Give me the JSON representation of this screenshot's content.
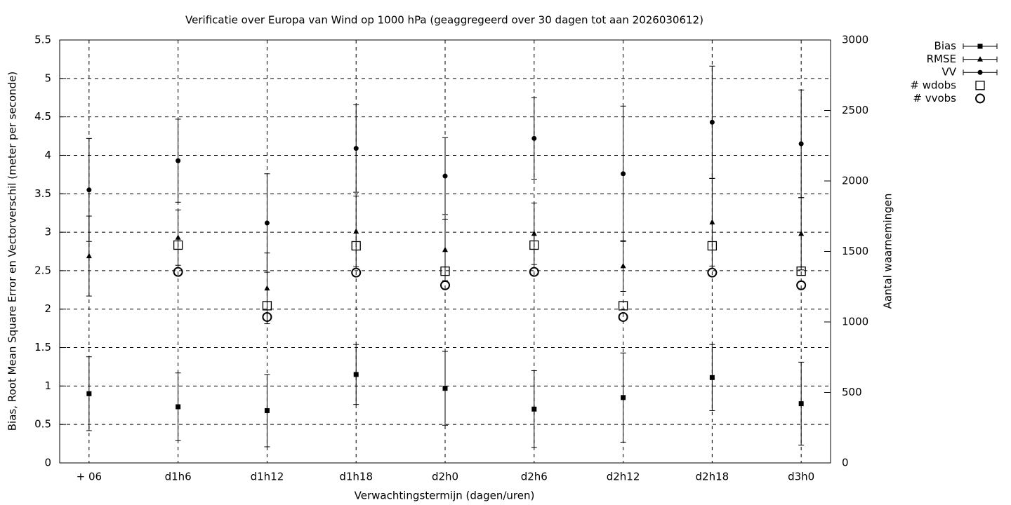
{
  "chart_data": {
    "type": "errorbar",
    "title": "Verificatie over Europa van Wind op 1000 hPa (geaggregeerd over 30 dagen tot aan 2026030612)",
    "x_label": "Verwachtingstermijn (dagen/uren)",
    "y_label": "Bias, Root Mean Square Error en Vectorverschil (meter per seconde)",
    "y2_label": "Aantal waarnemingen",
    "categories": [
      "+ 06",
      "d1h6",
      "d1h12",
      "d1h18",
      "d2h0",
      "d2h6",
      "d2h12",
      "d2h18",
      "d3h0"
    ],
    "ylim": [
      0,
      5.5
    ],
    "yticks": [
      0,
      0.5,
      1,
      1.5,
      2,
      2.5,
      3,
      3.5,
      4,
      4.5,
      5,
      5.5
    ],
    "y2lim": [
      0,
      3000
    ],
    "y2ticks": [
      0,
      500,
      1000,
      1500,
      2000,
      2500,
      3000
    ],
    "grid": true,
    "legend": "top-right",
    "series": [
      {
        "name": "Bias",
        "color": "#000000",
        "marker": "square",
        "values": [
          0.9,
          0.73,
          0.68,
          1.15,
          0.97,
          0.7,
          0.85,
          1.11,
          0.77
        ],
        "errors": [
          0.48,
          0.44,
          0.47,
          0.39,
          0.48,
          0.5,
          0.58,
          0.43,
          0.54
        ]
      },
      {
        "name": "RMSE",
        "color": "#000000",
        "marker": "triangle",
        "values": [
          2.69,
          2.93,
          2.27,
          3.01,
          2.77,
          2.98,
          2.56,
          3.13,
          2.98
        ],
        "errors": [
          0.52,
          0.36,
          0.46,
          0.46,
          0.4,
          0.4,
          0.33,
          0.57,
          0.47
        ]
      },
      {
        "name": "VV",
        "color": "#000000",
        "marker": "circle",
        "values": [
          3.55,
          3.93,
          3.12,
          4.09,
          3.73,
          4.22,
          3.76,
          4.43,
          4.15
        ],
        "errors": [
          0.67,
          0.54,
          0.64,
          0.57,
          0.5,
          0.53,
          0.88,
          0.73,
          0.7
        ]
      },
      {
        "name": "# wdobs",
        "color": "#000000",
        "marker": "open-square",
        "axis": "y2",
        "values": [
          null,
          1545,
          1115,
          1540,
          1360,
          1545,
          1115,
          1540,
          1360
        ]
      },
      {
        "name": "# vvobs",
        "color": "#000000",
        "marker": "open-circle",
        "axis": "y2",
        "values": [
          null,
          1355,
          1035,
          1350,
          1260,
          1355,
          1035,
          1350,
          1260
        ]
      }
    ]
  }
}
